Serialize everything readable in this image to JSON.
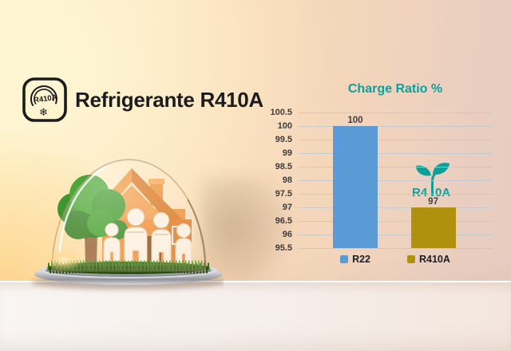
{
  "header": {
    "title": "Refrigerante R410A",
    "icon": {
      "label": "R410A",
      "snowflake_glyph": "❄"
    }
  },
  "chart_data": {
    "type": "bar",
    "title": "Charge Ratio %",
    "categories": [
      "R22",
      "R410A"
    ],
    "values": [
      100,
      97
    ],
    "value_labels": [
      "100",
      "97"
    ],
    "bar_colors": [
      "#5b9bd5",
      "#b0910e"
    ],
    "ylim": [
      95.5,
      100.5
    ],
    "yticks": [
      100.5,
      100,
      99.5,
      99,
      98.5,
      98,
      97.5,
      97,
      96.5,
      96,
      95.5
    ],
    "bar_centers_frac": [
      0.295,
      0.695
    ],
    "grid": true,
    "legend_position": "bottom"
  },
  "eco_badge": {
    "text": "R410A",
    "text_left": "R4",
    "text_right": "0A"
  },
  "palette": {
    "accent_teal": "#0da09a",
    "bar_blue": "#5b9bd5",
    "bar_gold": "#b0910e",
    "heading_ink": "#1c1c1e",
    "tick_ink": "#3c3c3e"
  }
}
